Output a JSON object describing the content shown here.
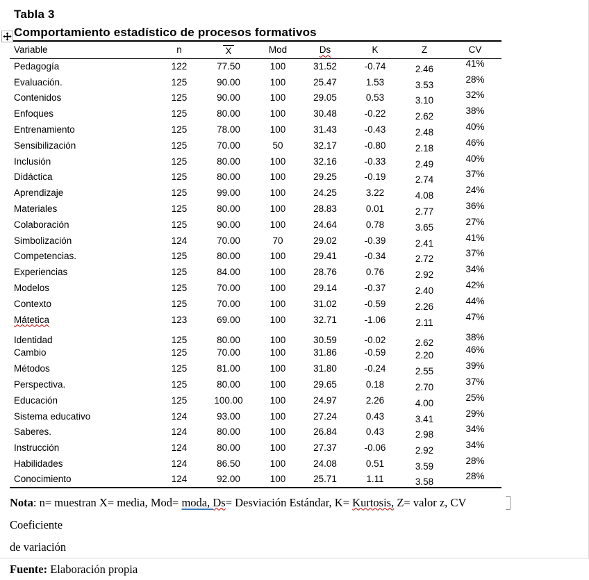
{
  "colors": {
    "text": "#000000",
    "spell_underline": "#c00000",
    "grammar_underline": "#2e74b5",
    "border": "#000000",
    "handle_border": "#ababab"
  },
  "heading": {
    "label": "Tabla 3",
    "title": "Comportamiento estadístico de procesos formativos"
  },
  "table": {
    "columns": [
      {
        "label": "Variable"
      },
      {
        "label": "n"
      },
      {
        "label": "X",
        "overline": true
      },
      {
        "label": "Mod"
      },
      {
        "label": "Ds",
        "misspelled": true
      },
      {
        "label": "K"
      },
      {
        "label": "Z"
      },
      {
        "label": "CV"
      }
    ],
    "rows": [
      {
        "cells": [
          "Pedagogía",
          "122",
          "77.50",
          "100",
          "31.52",
          "-0.74",
          "2.46",
          "41%"
        ]
      },
      {
        "cells": [
          "Evaluación.",
          "125",
          "90.00",
          "100",
          "25.47",
          "1.53",
          "3.53",
          "28%"
        ]
      },
      {
        "cells": [
          "Contenidos",
          "125",
          "90.00",
          "100",
          "29.05",
          "0.53",
          "3.10",
          "32%"
        ]
      },
      {
        "cells": [
          "Enfoques",
          "125",
          "80.00",
          "100",
          "30.48",
          "-0.22",
          "2.62",
          "38%"
        ]
      },
      {
        "cells": [
          "Entrenamiento",
          "125",
          "78.00",
          "100",
          "31.43",
          "-0.43",
          "2.48",
          "40%"
        ]
      },
      {
        "cells": [
          "Sensibilización",
          "125",
          "70.00",
          "50",
          "32.17",
          "-0.80",
          "2.18",
          "46%"
        ]
      },
      {
        "cells": [
          "Inclusión",
          "125",
          "80.00",
          "100",
          "32.16",
          "-0.33",
          "2.49",
          "40%"
        ]
      },
      {
        "cells": [
          "Didáctica",
          "125",
          "80.00",
          "100",
          "29.25",
          "-0.19",
          "2.74",
          "37%"
        ]
      },
      {
        "cells": [
          "Aprendizaje",
          "125",
          "99.00",
          "100",
          "24.25",
          "3.22",
          "4.08",
          "24%"
        ]
      },
      {
        "cells": [
          "Materiales",
          "125",
          "80.00",
          "100",
          "28.83",
          "0.01",
          "2.77",
          "36%"
        ]
      },
      {
        "cells": [
          "Colaboración",
          "125",
          "90.00",
          "100",
          "24.64",
          "0.78",
          "3.65",
          "27%"
        ]
      },
      {
        "cells": [
          "Simbolización",
          "124",
          "70.00",
          "70",
          "29.02",
          "-0.39",
          "2.41",
          "41%"
        ]
      },
      {
        "cells": [
          "Competencias.",
          "125",
          "80.00",
          "100",
          "29.41",
          "-0.34",
          "2.72",
          "37%"
        ]
      },
      {
        "cells": [
          "Experiencias",
          "125",
          "84.00",
          "100",
          "28.76",
          "0.76",
          "2.92",
          "34%"
        ]
      },
      {
        "cells": [
          "Modelos",
          "125",
          "70.00",
          "100",
          "29.14",
          "-0.37",
          "2.40",
          "42%"
        ]
      },
      {
        "cells": [
          "Contexto",
          "125",
          "70.00",
          "100",
          "31.02",
          "-0.59",
          "2.26",
          "44%"
        ]
      },
      {
        "cells": [
          "Mátetica",
          "123",
          "69.00",
          "100",
          "32.71",
          "-1.06",
          "2.11",
          "47%"
        ],
        "misspelled": true
      },
      {
        "cells": [
          "Identidad",
          "125",
          "80.00",
          "100",
          "30.59",
          "-0.02",
          "2.62",
          "38%"
        ],
        "gap_before": true
      },
      {
        "cells": [
          "Cambio",
          "125",
          "70.00",
          "100",
          "31.86",
          "-0.59",
          "2.20",
          "46%"
        ]
      },
      {
        "cells": [
          "Métodos",
          "125",
          "81.00",
          "100",
          "31.80",
          "-0.24",
          "2.55",
          "39%"
        ]
      },
      {
        "cells": [
          "Perspectiva.",
          "125",
          "80.00",
          "100",
          "29.65",
          "0.18",
          "2.70",
          "37%"
        ]
      },
      {
        "cells": [
          "Educación",
          "125",
          "100.00",
          "100",
          "24.97",
          "2.26",
          "4.00",
          "25%"
        ]
      },
      {
        "cells": [
          "Sistema educativo",
          "124",
          "93.00",
          "100",
          "27.24",
          "0.43",
          "3.41",
          "29%"
        ]
      },
      {
        "cells": [
          "Saberes.",
          "124",
          "80.00",
          "100",
          "26.84",
          "0.43",
          "2.98",
          "34%"
        ]
      },
      {
        "cells": [
          "Instrucción",
          "124",
          "80.00",
          "100",
          "27.37",
          "-0.06",
          "2.92",
          "34%"
        ]
      },
      {
        "cells": [
          "Habilidades",
          "124",
          "86.50",
          "100",
          "24.08",
          "0.51",
          "3.59",
          "28%"
        ]
      },
      {
        "cells": [
          "Conocimiento",
          "124",
          "92.00",
          "100",
          "25.71",
          "1.11",
          "3.58",
          "28%"
        ]
      }
    ]
  },
  "note": {
    "label": "Nota",
    "segments": [
      {
        "text": ": n= muestran X= media, Mod= "
      },
      {
        "text": "moda, ",
        "style": "grammar"
      },
      {
        "text": " "
      },
      {
        "text": "Ds",
        "style": "spell"
      },
      {
        "text": "= Desviación Estándar, K= "
      },
      {
        "text": "Kurtosis,",
        "style": "spell"
      },
      {
        "text": " Z= valor z, CV Coeficiente"
      },
      {
        "text": "de variación",
        "break_before": true
      }
    ]
  },
  "fuente": {
    "label": "Fuente:",
    "text": " Elaboración propia"
  }
}
